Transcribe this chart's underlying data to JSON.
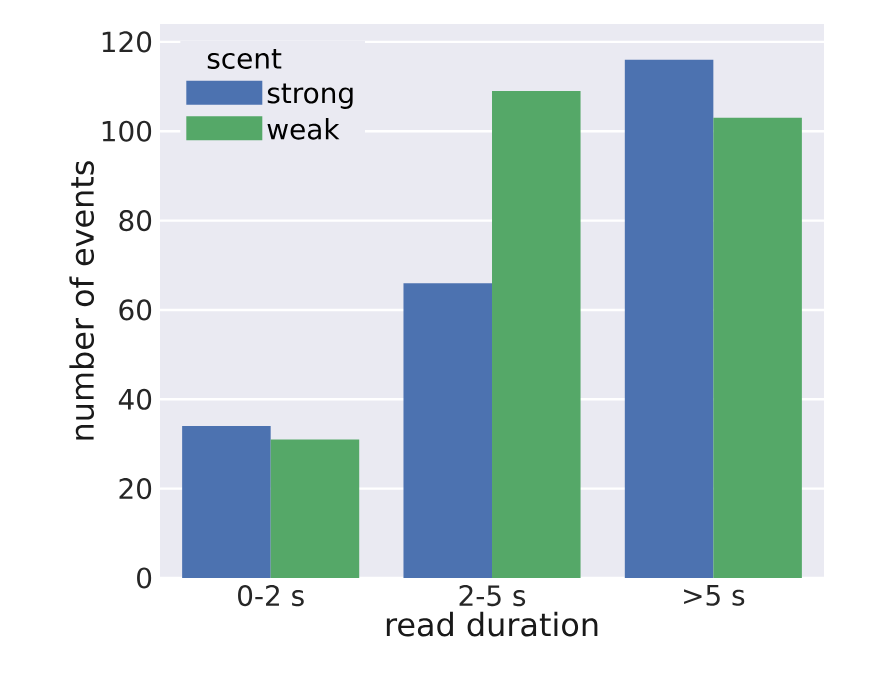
{
  "chart_data": {
    "type": "bar",
    "xlabel": "read duration",
    "ylabel": "number of events",
    "legend_title": "scent",
    "categories": [
      "0-2 s",
      "2-5 s",
      ">5 s"
    ],
    "series": [
      {
        "name": "strong",
        "color": "#4c72b0",
        "values": [
          34,
          66,
          116
        ]
      },
      {
        "name": "weak",
        "color": "#55a868",
        "values": [
          31,
          109,
          103
        ]
      }
    ],
    "ylim": [
      0,
      124
    ],
    "yticks": [
      0,
      20,
      40,
      60,
      80,
      100,
      120
    ],
    "grid": "y",
    "legend": "top left"
  }
}
